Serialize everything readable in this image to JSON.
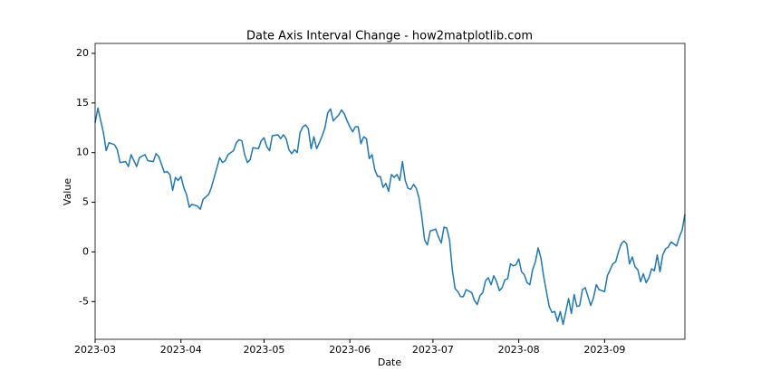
{
  "chart_data": {
    "type": "line",
    "title": "Date Axis Interval Change - how2matplotlib.com",
    "x_label": "Date",
    "y_label": "Value",
    "color": "#1f77b4",
    "xlim": [
      "2023-03-01",
      "2023-09-30"
    ],
    "xticks": [
      {
        "value": "2023-03-01",
        "label": "2023-03"
      },
      {
        "value": "2023-04-01",
        "label": "2023-04"
      },
      {
        "value": "2023-05-01",
        "label": "2023-05"
      },
      {
        "value": "2023-06-01",
        "label": "2023-06"
      },
      {
        "value": "2023-07-01",
        "label": "2023-07"
      },
      {
        "value": "2023-08-01",
        "label": "2023-08"
      },
      {
        "value": "2023-09-01",
        "label": "2023-09"
      }
    ],
    "ylim": [
      -8.8,
      21.0
    ],
    "yticks": [
      -5,
      0,
      5,
      10,
      15,
      20
    ],
    "x": [
      "2023-03-01",
      "2023-03-02",
      "2023-03-04",
      "2023-03-05",
      "2023-03-06",
      "2023-03-08",
      "2023-03-09",
      "2023-03-10",
      "2023-03-12",
      "2023-03-13",
      "2023-03-14",
      "2023-03-16",
      "2023-03-17",
      "2023-03-19",
      "2023-03-20",
      "2023-03-22",
      "2023-03-23",
      "2023-03-24",
      "2023-03-26",
      "2023-03-27",
      "2023-03-28",
      "2023-03-29",
      "2023-03-30",
      "2023-03-31",
      "2023-04-01",
      "2023-04-02",
      "2023-04-03",
      "2023-04-04",
      "2023-04-05",
      "2023-04-07",
      "2023-04-08",
      "2023-04-09",
      "2023-04-11",
      "2023-04-12",
      "2023-04-14",
      "2023-04-15",
      "2023-04-16",
      "2023-04-17",
      "2023-04-18",
      "2023-04-20",
      "2023-04-21",
      "2023-04-22",
      "2023-04-23",
      "2023-04-24",
      "2023-04-25",
      "2023-04-26",
      "2023-04-27",
      "2023-04-29",
      "2023-04-30",
      "2023-05-01",
      "2023-05-02",
      "2023-05-03",
      "2023-05-04",
      "2023-05-06",
      "2023-05-07",
      "2023-05-08",
      "2023-05-09",
      "2023-05-10",
      "2023-05-11",
      "2023-05-12",
      "2023-05-13",
      "2023-05-14",
      "2023-05-15",
      "2023-05-16",
      "2023-05-17",
      "2023-05-18",
      "2023-05-19",
      "2023-05-20",
      "2023-05-21",
      "2023-05-22",
      "2023-05-23",
      "2023-05-24",
      "2023-05-25",
      "2023-05-26",
      "2023-05-27",
      "2023-05-28",
      "2023-05-29",
      "2023-05-30",
      "2023-05-31",
      "2023-06-01",
      "2023-06-02",
      "2023-06-03",
      "2023-06-04",
      "2023-06-05",
      "2023-06-06",
      "2023-06-07",
      "2023-06-08",
      "2023-06-09",
      "2023-06-10",
      "2023-06-11",
      "2023-06-12",
      "2023-06-13",
      "2023-06-14",
      "2023-06-15",
      "2023-06-16",
      "2023-06-17",
      "2023-06-18",
      "2023-06-19",
      "2023-06-20",
      "2023-06-21",
      "2023-06-22",
      "2023-06-23",
      "2023-06-24",
      "2023-06-25",
      "2023-06-26",
      "2023-06-27",
      "2023-06-28",
      "2023-06-29",
      "2023-06-30",
      "2023-07-02",
      "2023-07-03",
      "2023-07-04",
      "2023-07-05",
      "2023-07-06",
      "2023-07-07",
      "2023-07-08",
      "2023-07-09",
      "2023-07-10",
      "2023-07-11",
      "2023-07-12",
      "2023-07-13",
      "2023-07-15",
      "2023-07-16",
      "2023-07-17",
      "2023-07-18",
      "2023-07-19",
      "2023-07-20",
      "2023-07-21",
      "2023-07-22",
      "2023-07-23",
      "2023-07-24",
      "2023-07-25",
      "2023-07-26",
      "2023-07-27",
      "2023-07-28",
      "2023-07-29",
      "2023-07-30",
      "2023-07-31",
      "2023-08-01",
      "2023-08-02",
      "2023-08-03",
      "2023-08-04",
      "2023-08-05",
      "2023-08-06",
      "2023-08-07",
      "2023-08-08",
      "2023-08-09",
      "2023-08-10",
      "2023-08-11",
      "2023-08-12",
      "2023-08-13",
      "2023-08-14",
      "2023-08-15",
      "2023-08-16",
      "2023-08-17",
      "2023-08-18",
      "2023-08-19",
      "2023-08-20",
      "2023-08-21",
      "2023-08-22",
      "2023-08-23",
      "2023-08-24",
      "2023-08-25",
      "2023-08-26",
      "2023-08-27",
      "2023-08-28",
      "2023-08-29",
      "2023-08-30",
      "2023-08-31",
      "2023-09-01",
      "2023-09-02",
      "2023-09-03",
      "2023-09-04",
      "2023-09-05",
      "2023-09-06",
      "2023-09-07",
      "2023-09-08",
      "2023-09-09",
      "2023-09-10",
      "2023-09-11",
      "2023-09-12",
      "2023-09-13",
      "2023-09-14",
      "2023-09-15",
      "2023-09-16",
      "2023-09-17",
      "2023-09-18",
      "2023-09-19",
      "2023-09-20",
      "2023-09-21",
      "2023-09-22",
      "2023-09-23",
      "2023-09-24",
      "2023-09-25",
      "2023-09-26",
      "2023-09-27",
      "2023-09-28",
      "2023-09-29",
      "2023-09-30"
    ],
    "values": [
      13,
      14.5,
      12,
      10.2,
      11,
      10.8,
      10.3,
      9,
      9.1,
      8.6,
      9.8,
      8.6,
      9.5,
      9.8,
      9.2,
      9.1,
      9.9,
      9.6,
      8,
      8.1,
      7.8,
      6.2,
      7.5,
      7.2,
      7.6,
      6.5,
      5.8,
      4.5,
      4.8,
      4.6,
      4.3,
      5.3,
      5.8,
      6.5,
      8.5,
      9.5,
      9,
      9.2,
      9.8,
      10.2,
      11,
      11.3,
      11.2,
      9.8,
      9,
      9.3,
      10.5,
      10.4,
      11.2,
      11.5,
      10.6,
      10.2,
      11.7,
      11.8,
      11.4,
      11.8,
      11.4,
      10.3,
      9.9,
      10.3,
      10,
      12,
      12.6,
      12.8,
      12.4,
      10.4,
      11.6,
      10.4,
      11,
      11.7,
      12.5,
      14,
      14.4,
      13.2,
      13.5,
      13.8,
      14.3,
      13.9,
      13.2,
      12.6,
      12.1,
      12.6,
      12.6,
      10.9,
      11.6,
      11.4,
      9.4,
      9.8,
      8.3,
      7.6,
      7.6,
      6.5,
      6.9,
      6.1,
      7.8,
      7.5,
      7.8,
      7.2,
      9.1,
      7.2,
      6.4,
      6.3,
      6.8,
      6.4,
      5.4,
      3.5,
      1.2,
      0.7,
      2.1,
      2.3,
      1.5,
      0.9,
      2.5,
      2.4,
      1.2,
      -1.8,
      -3.7,
      -4,
      -4.5,
      -4.5,
      -3.8,
      -4.1,
      -4.9,
      -5.3,
      -4.4,
      -4.1,
      -2.9,
      -2.6,
      -3.3,
      -2.4,
      -3,
      -3.9,
      -3.6,
      -2.8,
      -2.7,
      -1.2,
      -1.4,
      -1.3,
      -0.7,
      -2,
      -2.3,
      -3.1,
      -3.3,
      -1.8,
      -1,
      0.4,
      -0.6,
      -2.5,
      -4,
      -5.5,
      -6.1,
      -6,
      -7,
      -6,
      -7.3,
      -6,
      -4.7,
      -6.2,
      -4.3,
      -5.5,
      -5.4,
      -3.8,
      -3.6,
      -4.5,
      -5.4,
      -4.6,
      -3.3,
      -3.8,
      -3.9,
      -4,
      -2.4,
      -1.8,
      -1.2,
      -1,
      0,
      0.8,
      1.1,
      0.8,
      -1.2,
      -0.5,
      -1.5,
      -1.8,
      -3,
      -2.2,
      -3.1,
      -2.6,
      -1.7,
      -1.9,
      -0.3,
      -2,
      -0.3,
      0.3,
      0.5,
      1,
      0.8,
      0.6,
      1.5,
      2.2,
      3.8
    ]
  }
}
